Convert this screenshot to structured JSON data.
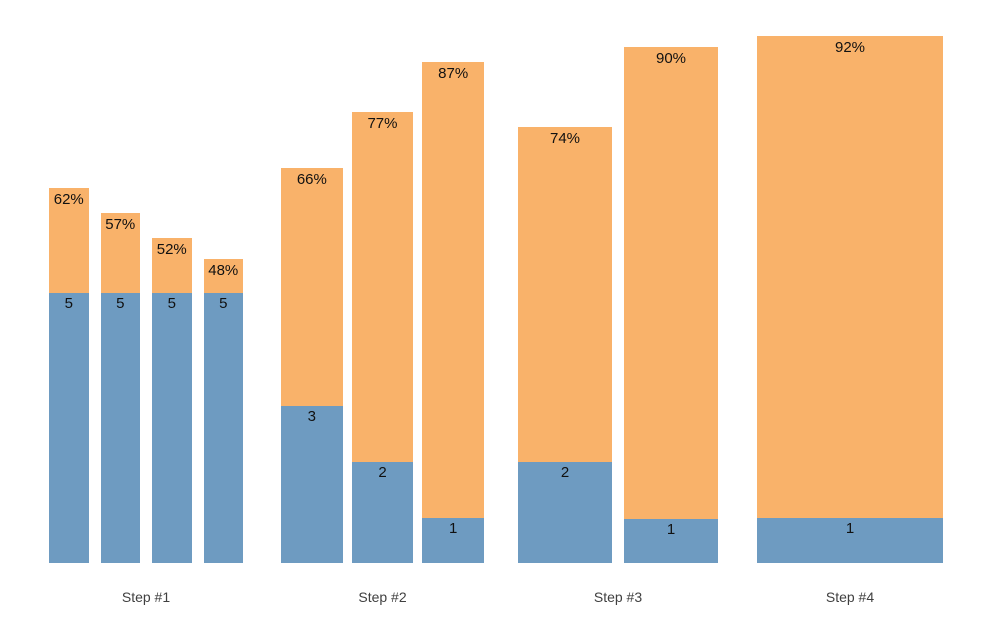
{
  "page": {
    "background_color": "#ffffff"
  },
  "chart_data": {
    "type": "bar",
    "subtype": "variable-width-stacked-funnel",
    "title": "",
    "xlabel": "",
    "ylabel": "",
    "grid": false,
    "axes_visible": false,
    "legend_position": "none",
    "colors": {
      "top_segment": "#F9B26A",
      "bottom_segment": "#6E9BC1",
      "bar_label_text": "#111111",
      "group_label_text": "#404040"
    },
    "segments_semantics": {
      "top_segment_label": "percentage",
      "bottom_segment_label": "count"
    },
    "groups": [
      {
        "label": "Step #1",
        "bars": [
          {
            "pct": 62,
            "pct_label": "62%",
            "value": 5,
            "value_label": "5"
          },
          {
            "pct": 57,
            "pct_label": "57%",
            "value": 5,
            "value_label": "5"
          },
          {
            "pct": 52,
            "pct_label": "52%",
            "value": 5,
            "value_label": "5"
          },
          {
            "pct": 48,
            "pct_label": "48%",
            "value": 5,
            "value_label": "5"
          }
        ]
      },
      {
        "label": "Step #2",
        "bars": [
          {
            "pct": 66,
            "pct_label": "66%",
            "value": 3,
            "value_label": "3"
          },
          {
            "pct": 77,
            "pct_label": "77%",
            "value": 2,
            "value_label": "2"
          },
          {
            "pct": 87,
            "pct_label": "87%",
            "value": 1,
            "value_label": "1"
          }
        ]
      },
      {
        "label": "Step #3",
        "bars": [
          {
            "pct": 74,
            "pct_label": "74%",
            "value": 2,
            "value_label": "2"
          },
          {
            "pct": 90,
            "pct_label": "90%",
            "value": 1,
            "value_label": "1"
          }
        ]
      },
      {
        "label": "Step #4",
        "bars": [
          {
            "pct": 92,
            "pct_label": "92%",
            "value": 1,
            "value_label": "1"
          }
        ]
      }
    ]
  }
}
